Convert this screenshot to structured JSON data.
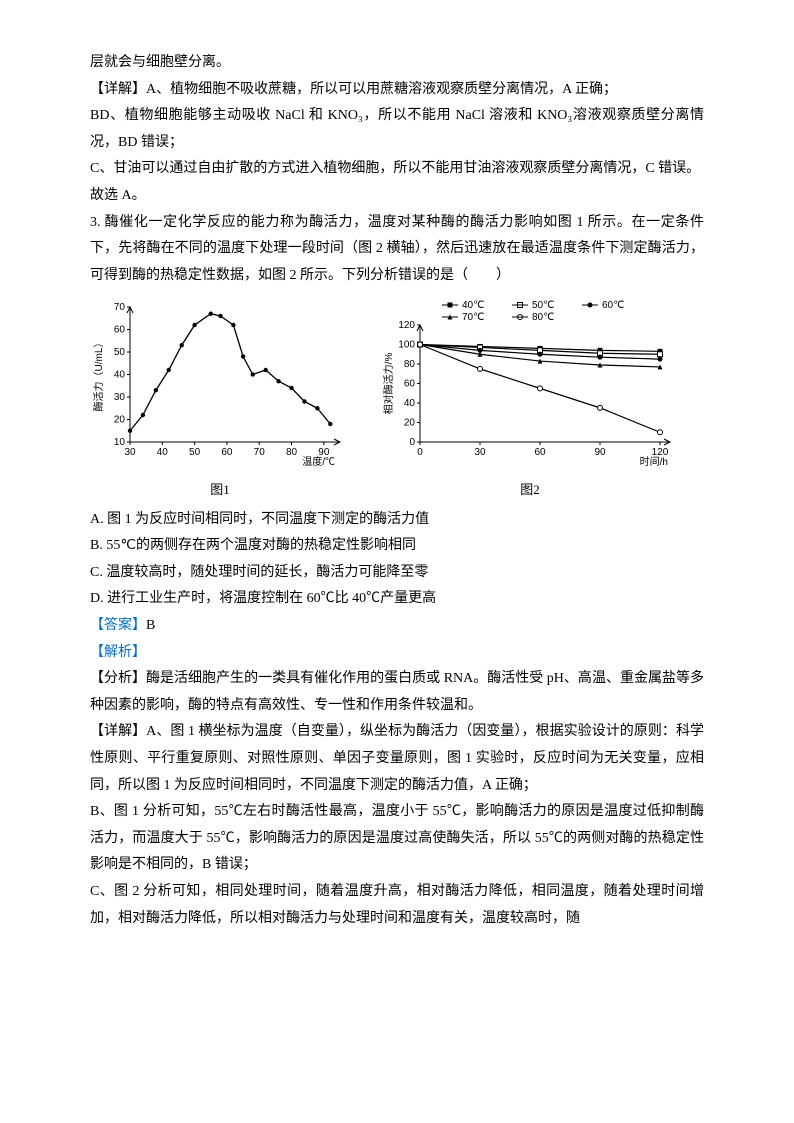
{
  "p1": "层就会与细胞壁分离。",
  "p2": "【详解】A、植物细胞不吸收蔗糖，所以可以用蔗糖溶液观察质壁分离情况，A 正确；",
  "p3": "BD、植物细胞能够主动吸收 NaCl 和 KNO₃，所以不能用 NaCl 溶液和 KNO₃溶液观察质壁分离情况，BD 错误；",
  "p4": "C、甘油可以通过自由扩散的方式进入植物细胞，所以不能用甘油溶液观察质壁分离情况，C 错误。",
  "p5": "故选 A。",
  "q3_stem": "3. 酶催化一定化学反应的能力称为酶活力，温度对某种酶的酶活力影响如图 1 所示。在一定条件下，先将酶在不同的温度下处理一段时间（图 2 横轴），然后迅速放在最适温度条件下测定酶活力，可得到酶的热稳定性数据，如图 2 所示。下列分析错误的是（　　）",
  "optA": "A. 图 1 为反应时间相同时，不同温度下测定的酶活力值",
  "optB": "B. 55℃的两侧存在两个温度对酶的热稳定性影响相同",
  "optC": "C. 温度较高时，随处理时间的延长，酶活力可能降至零",
  "optD": "D. 进行工业生产时，将温度控制在 60℃比 40℃产量更高",
  "answer_label": "【答案】",
  "answer_val": "B",
  "jiexi_label": "【解析】",
  "ana": "【分析】酶是活细胞产生的一类具有催化作用的蛋白质或 RNA。酶活性受 pH、高温、重金属盐等多种因素的影响，酶的特点有高效性、专一性和作用条件较温和。",
  "det1": "【详解】A、图 1 横坐标为温度（自变量），纵坐标为酶活力（因变量），根据实验设计的原则：科学性原则、平行重复原则、对照性原则、单因子变量原则，图 1 实验时，反应时间为无关变量，应相同，所以图 1 为反应时间相同时，不同温度下测定的酶活力值，A 正确；",
  "det2": "B、图 1 分析可知，55℃左右时酶活性最高，温度小于 55℃，影响酶活力的原因是温度过低抑制酶活力，而温度大于 55℃，影响酶活力的原因是温度过高使酶失活，所以 55℃的两侧对酶的热稳定性影响是不相同的，B 错误；",
  "det3": "C、图 2 分析可知，相同处理时间，随着温度升高，相对酶活力降低，相同温度，随着处理时间增加，相对酶活力降低，所以相对酶活力与处理时间和温度有关，温度较高时，随",
  "chart1": {
    "type": "line-scatter",
    "x_label": "温度/℃",
    "y_label": "酶活力（U/mL）",
    "caption": "图1",
    "x_ticks": [
      30,
      40,
      50,
      60,
      70,
      80,
      90
    ],
    "y_ticks": [
      10,
      20,
      30,
      40,
      50,
      60,
      70
    ],
    "points": [
      [
        30,
        15
      ],
      [
        34,
        22
      ],
      [
        38,
        33
      ],
      [
        42,
        42
      ],
      [
        46,
        53
      ],
      [
        50,
        62
      ],
      [
        55,
        67
      ],
      [
        58,
        66
      ],
      [
        62,
        62
      ],
      [
        65,
        48
      ],
      [
        68,
        40
      ],
      [
        72,
        42
      ],
      [
        76,
        37
      ],
      [
        80,
        34
      ],
      [
        84,
        28
      ],
      [
        88,
        25
      ],
      [
        92,
        18
      ]
    ],
    "line_color": "#000000",
    "marker_color": "#000000",
    "marker_radius": 2.2,
    "axis_color": "#000000",
    "font_size": 10
  },
  "chart2": {
    "type": "multi-line",
    "x_label": "时间/h",
    "y_label": "相对酶活力/%",
    "caption": "图2",
    "x_ticks": [
      0,
      30,
      60,
      90,
      120
    ],
    "y_ticks": [
      0,
      20,
      40,
      60,
      80,
      100,
      120
    ],
    "legend": [
      {
        "label": "40℃",
        "marker": "filled-square",
        "color": "#000000"
      },
      {
        "label": "50℃",
        "marker": "open-square",
        "color": "#000000"
      },
      {
        "label": "60℃",
        "marker": "filled-circle",
        "color": "#000000"
      },
      {
        "label": "70℃",
        "marker": "filled-triangle",
        "color": "#000000"
      },
      {
        "label": "80℃",
        "marker": "open-circle",
        "color": "#000000"
      }
    ],
    "series": {
      "s40": [
        [
          0,
          100
        ],
        [
          30,
          98
        ],
        [
          60,
          96
        ],
        [
          90,
          94
        ],
        [
          120,
          93
        ]
      ],
      "s50": [
        [
          0,
          100
        ],
        [
          30,
          97
        ],
        [
          60,
          94
        ],
        [
          90,
          91
        ],
        [
          120,
          90
        ]
      ],
      "s60": [
        [
          0,
          100
        ],
        [
          30,
          94
        ],
        [
          60,
          90
        ],
        [
          90,
          87
        ],
        [
          120,
          85
        ]
      ],
      "s70": [
        [
          0,
          100
        ],
        [
          30,
          90
        ],
        [
          60,
          83
        ],
        [
          90,
          79
        ],
        [
          120,
          77
        ]
      ],
      "s80": [
        [
          0,
          100
        ],
        [
          30,
          75
        ],
        [
          60,
          55
        ],
        [
          90,
          35
        ],
        [
          120,
          10
        ]
      ]
    },
    "line_color": "#000000",
    "axis_color": "#000000",
    "font_size": 10
  }
}
